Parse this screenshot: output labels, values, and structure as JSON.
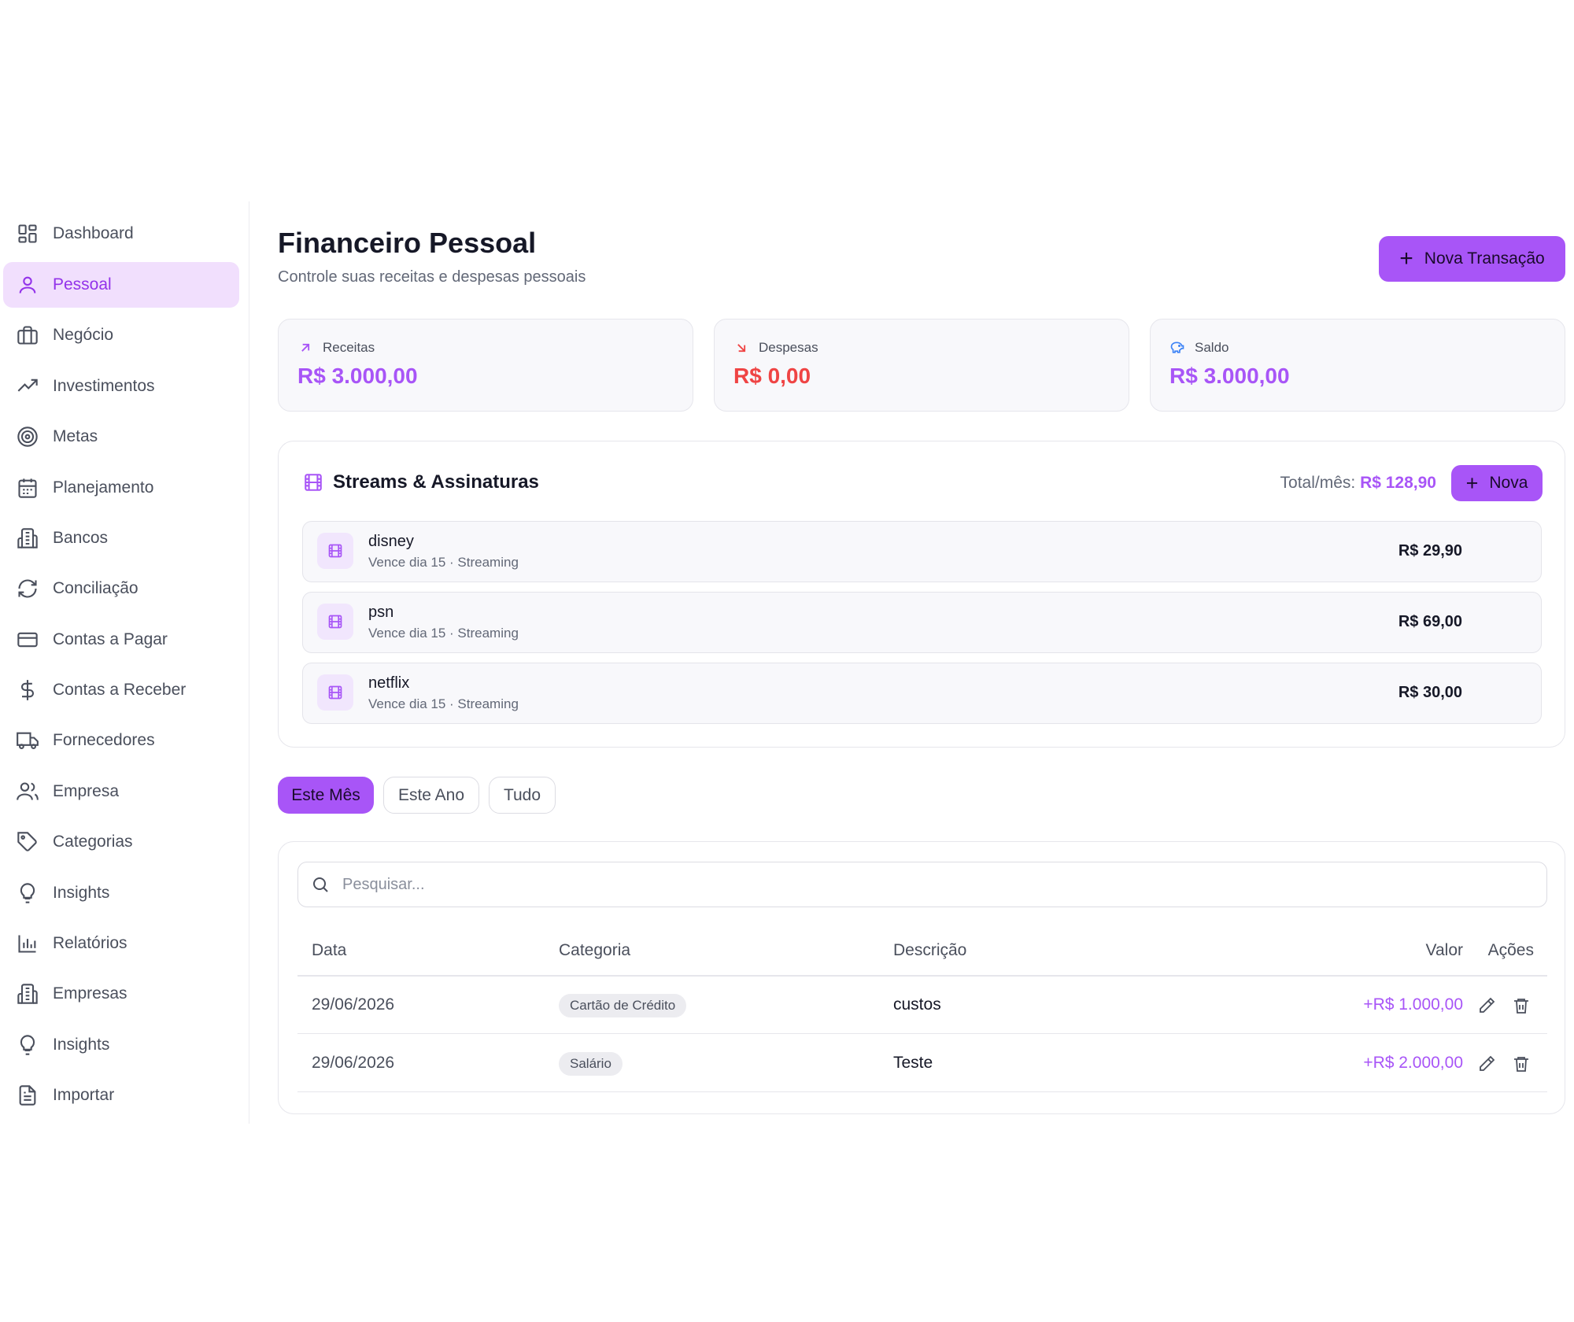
{
  "sidebar": {
    "items": [
      {
        "label": "Dashboard",
        "icon": "dashboard-grid-icon"
      },
      {
        "label": "Pessoal",
        "icon": "user-icon",
        "active": true
      },
      {
        "label": "Negócio",
        "icon": "briefcase-icon"
      },
      {
        "label": "Investimentos",
        "icon": "trending-up-icon"
      },
      {
        "label": "Metas",
        "icon": "target-icon"
      },
      {
        "label": "Planejamento",
        "icon": "calendar-icon"
      },
      {
        "label": "Bancos",
        "icon": "building-icon"
      },
      {
        "label": "Conciliação",
        "icon": "refresh-icon"
      },
      {
        "label": "Contas a Pagar",
        "icon": "credit-card-icon"
      },
      {
        "label": "Contas a Receber",
        "icon": "dollar-icon"
      },
      {
        "label": "Fornecedores",
        "icon": "truck-icon"
      },
      {
        "label": "Empresa",
        "icon": "users-icon"
      },
      {
        "label": "Categorias",
        "icon": "tag-icon"
      },
      {
        "label": "Insights",
        "icon": "lightbulb-icon"
      },
      {
        "label": "Relatórios",
        "icon": "bar-chart-icon"
      },
      {
        "label": "Empresas",
        "icon": "building-icon"
      },
      {
        "label": "Insights",
        "icon": "lightbulb-icon"
      },
      {
        "label": "Importar",
        "icon": "file-text-icon"
      }
    ]
  },
  "header": {
    "title": "Financeiro Pessoal",
    "subtitle": "Controle suas receitas e despesas pessoais",
    "new_transaction_label": "Nova Transação"
  },
  "summary": {
    "income": {
      "label": "Receitas",
      "value": "R$ 3.000,00",
      "color": "#a855f7"
    },
    "expenses": {
      "label": "Despesas",
      "value": "R$ 0,00",
      "color": "#ef4444"
    },
    "balance": {
      "label": "Saldo",
      "value": "R$ 3.000,00",
      "color": "#a855f7"
    }
  },
  "subscriptions": {
    "title": "Streams & Assinaturas",
    "total_label": "Total/mês:",
    "total_value": "R$ 128,90",
    "new_label": "Nova",
    "items": [
      {
        "name": "disney",
        "meta": "Vence dia 15 · Streaming",
        "price": "R$ 29,90"
      },
      {
        "name": "psn",
        "meta": "Vence dia 15 · Streaming",
        "price": "R$ 69,00"
      },
      {
        "name": "netflix",
        "meta": "Vence dia 15 · Streaming",
        "price": "R$ 30,00"
      }
    ]
  },
  "filters": {
    "tabs": [
      {
        "label": "Este Mês",
        "active": true
      },
      {
        "label": "Este Ano",
        "active": false
      },
      {
        "label": "Tudo",
        "active": false
      }
    ]
  },
  "transactions": {
    "search_placeholder": "Pesquisar...",
    "columns": [
      "Data",
      "Categoria",
      "Descrição",
      "Valor",
      "Ações"
    ],
    "rows": [
      {
        "date": "29/06/2026",
        "category": "Cartão de Crédito",
        "description": "custos",
        "value": "+R$ 1.000,00"
      },
      {
        "date": "29/06/2026",
        "category": "Salário",
        "description": "Teste",
        "value": "+R$ 2.000,00"
      }
    ]
  },
  "colors": {
    "accent": "#a855f7",
    "accent_light": "#f1dffd",
    "danger": "#ef4444",
    "saldo_icon": "#3b82f6"
  }
}
